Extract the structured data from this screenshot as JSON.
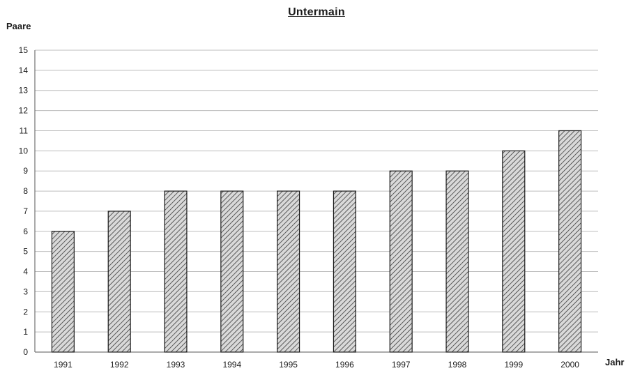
{
  "chart_data": {
    "type": "bar",
    "title": "Untermain",
    "ylabel": "Paare",
    "xlabel": "Jahr",
    "categories": [
      "1991",
      "1992",
      "1993",
      "1994",
      "1995",
      "1996",
      "1997",
      "1998",
      "1999",
      "2000"
    ],
    "values": [
      6,
      7,
      8,
      8,
      8,
      8,
      9,
      9,
      10,
      11
    ],
    "ylim": [
      0,
      15
    ],
    "yticks": [
      "0",
      "1",
      "2",
      "3",
      "4",
      "5",
      "6",
      "7",
      "8",
      "9",
      "10",
      "11",
      "12",
      "13",
      "14",
      "15"
    ],
    "grid": true,
    "legend": "none",
    "colors": {
      "bar_fill": "#d9d9d9",
      "bar_hatch": "#3a3a3a",
      "bar_border": "#1a1a1a",
      "grid": "#bdbdbd",
      "axis": "#555555"
    }
  }
}
